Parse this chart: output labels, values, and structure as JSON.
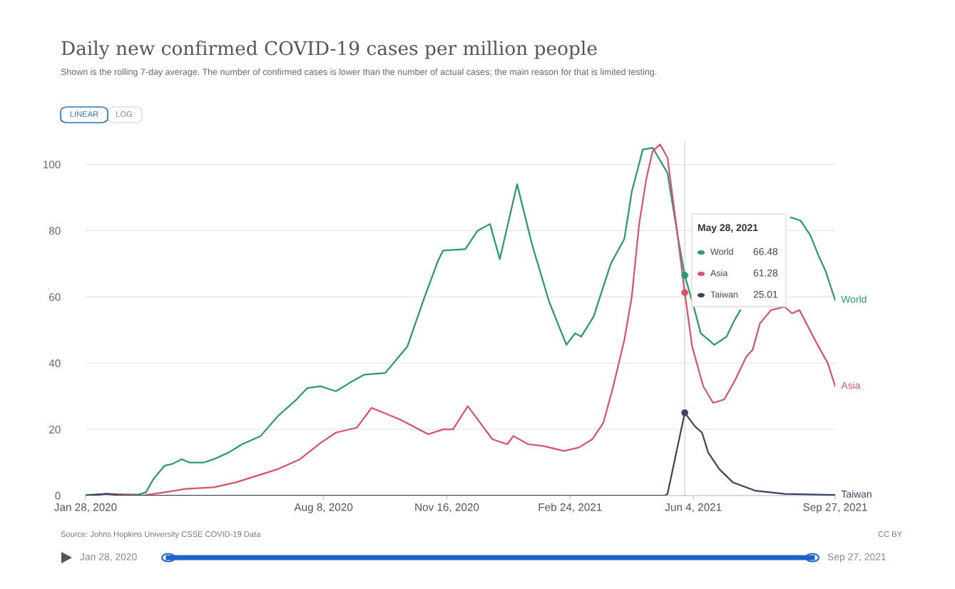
{
  "chart_data": {
    "type": "line",
    "title": "Daily new confirmed COVID-19 cases per million people",
    "subtitle": "Shown is the rolling 7-day average. The number of confirmed cases is lower than the number of actual cases; the main reason for that is limited testing.",
    "xlim": [
      "2020-01-28",
      "2021-09-27"
    ],
    "xticks": [
      {
        "value": "2020-01-28",
        "label": "Jan 28, 2020"
      },
      {
        "value": "2020-08-08",
        "label": "Aug 8, 2020"
      },
      {
        "value": "2020-11-16",
        "label": "Nov 16, 2020"
      },
      {
        "value": "2021-02-24",
        "label": "Feb 24, 2021"
      },
      {
        "value": "2021-06-04",
        "label": "Jun 4, 2021"
      },
      {
        "value": "2021-09-27",
        "label": "Sep 27, 2021"
      }
    ],
    "ylim": [
      0,
      107
    ],
    "yticks": [
      0,
      20,
      40,
      60,
      80,
      100
    ],
    "grid": "y",
    "legend": "right",
    "marker": "none",
    "line_style": "solid",
    "ref_lines": [
      {
        "axis": "x",
        "value": "2021-05-28",
        "label": "May 28, 2021",
        "color": "#dddddd"
      }
    ],
    "annotations": [
      "LINEAR",
      "LOG",
      "Source: Johns Hopkins University CSSE COVID-19 Data",
      "CC BY",
      "Jan 28, 2020",
      "Sep 27, 2021",
      "66.48",
      "61.28",
      "25.01"
    ],
    "series": [
      {
        "name": "World",
        "color": "#2a9a6c",
        "x": [
          "2020-01-28",
          "2020-02-14",
          "2020-03-11",
          "2020-03-17",
          "2020-03-23",
          "2020-04-01",
          "2020-04-07",
          "2020-04-15",
          "2020-04-21",
          "2020-05-03",
          "2020-05-11",
          "2020-05-23",
          "2020-06-03",
          "2020-06-18",
          "2020-07-02",
          "2020-07-17",
          "2020-07-26",
          "2020-08-06",
          "2020-08-18",
          "2020-08-29",
          "2020-09-10",
          "2020-09-27",
          "2020-10-06",
          "2020-10-15",
          "2020-10-29",
          "2020-11-09",
          "2020-11-13",
          "2020-12-01",
          "2020-12-11",
          "2020-12-21",
          "2020-12-29",
          "2021-01-12",
          "2021-01-24",
          "2021-02-07",
          "2021-02-21",
          "2021-02-28",
          "2021-03-05",
          "2021-03-15",
          "2021-03-29",
          "2021-04-09",
          "2021-04-15",
          "2021-04-24",
          "2021-05-02",
          "2021-05-14",
          "2021-05-22",
          "2021-05-28",
          "2021-06-05",
          "2021-06-10",
          "2021-06-21",
          "2021-07-01",
          "2021-07-06",
          "2021-07-12",
          "2021-08-10",
          "2021-08-22",
          "2021-08-30",
          "2021-09-07",
          "2021-09-14",
          "2021-09-19",
          "2021-09-27"
        ],
        "values": [
          0.2,
          0.5,
          0.3,
          1,
          5,
          9,
          9.5,
          11,
          10,
          10,
          11,
          13,
          15.5,
          18,
          24,
          29,
          32.5,
          33,
          31.5,
          34,
          36.5,
          37,
          41,
          45,
          60,
          71,
          74,
          74.4,
          80,
          82,
          71.4,
          94,
          76,
          58.5,
          45.5,
          49,
          48,
          54,
          70,
          77.5,
          91.7,
          104.5,
          105,
          97.4,
          79,
          66.48,
          56,
          49,
          45.5,
          48,
          52,
          56,
          null,
          84,
          83,
          78.5,
          72,
          68,
          59
        ]
      },
      {
        "name": "Asia",
        "color": "#d6536d",
        "x": [
          "2020-01-28",
          "2020-02-14",
          "2020-03-14",
          "2020-04-01",
          "2020-04-18",
          "2020-05-11",
          "2020-05-29",
          "2020-06-15",
          "2020-07-02",
          "2020-07-20",
          "2020-08-06",
          "2020-08-18",
          "2020-09-04",
          "2020-09-16",
          "2020-10-09",
          "2020-11-01",
          "2020-11-13",
          "2020-11-21",
          "2020-12-03",
          "2020-12-11",
          "2020-12-23",
          "2021-01-04",
          "2021-01-09",
          "2021-01-21",
          "2021-02-02",
          "2021-02-19",
          "2021-03-03",
          "2021-03-14",
          "2021-03-23",
          "2021-03-31",
          "2021-04-09",
          "2021-04-15",
          "2021-04-21",
          "2021-04-27",
          "2021-05-02",
          "2021-05-08",
          "2021-05-14",
          "2021-05-21",
          "2021-05-28",
          "2021-06-03",
          "2021-06-12",
          "2021-06-20",
          "2021-06-29",
          "2021-07-08",
          "2021-07-17",
          "2021-07-22",
          "2021-07-28",
          "2021-08-06",
          "2021-08-17",
          "2021-08-23",
          "2021-08-29",
          "2021-09-12",
          "2021-09-21",
          "2021-09-27"
        ],
        "values": [
          0,
          0.5,
          0,
          1,
          2,
          2.5,
          4,
          6,
          8,
          11,
          16,
          19,
          20.5,
          26.5,
          23,
          18.5,
          20,
          20,
          27,
          23,
          17,
          15.5,
          18,
          15.5,
          15,
          13.5,
          14.5,
          17,
          22,
          33,
          47,
          60,
          82,
          96,
          104,
          106,
          102,
          82,
          61.28,
          45,
          33,
          28,
          29,
          35,
          42,
          44,
          52,
          56,
          57,
          55,
          56,
          46,
          40,
          33
        ]
      },
      {
        "name": "Taiwan",
        "color": "#3a4460",
        "x": [
          "2020-01-28",
          "2020-02-14",
          "2020-02-27",
          "2021-05-12",
          "2021-05-14",
          "2021-05-28",
          "2021-06-05",
          "2021-06-11",
          "2021-06-16",
          "2021-06-25",
          "2021-07-06",
          "2021-07-24",
          "2021-08-17",
          "2021-09-27"
        ],
        "values": [
          0,
          0.5,
          0,
          0,
          0.5,
          25.01,
          21,
          19,
          13,
          8,
          4,
          1.5,
          0.5,
          0.2
        ]
      }
    ]
  }
}
